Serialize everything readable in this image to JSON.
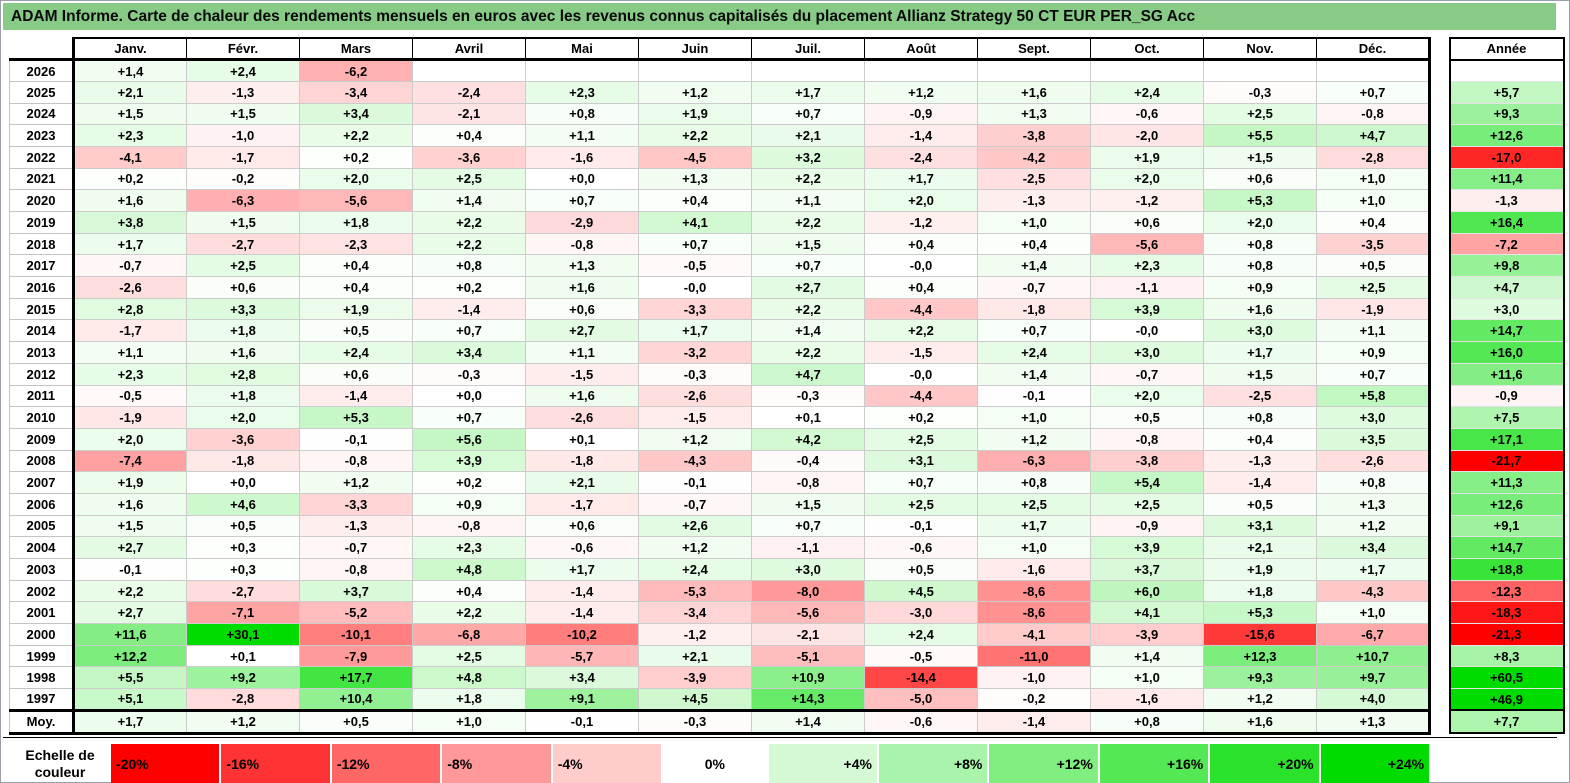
{
  "chart_data": {
    "type": "heatmap",
    "title": "ADAM Informe. Carte de chaleur des rendements mensuels en euros avec les revenus connus capitalisés du placement Allianz Strategy 50 CT EUR PER_SG Acc",
    "columns": [
      "Janv.",
      "Févr.",
      "Mars",
      "Avril",
      "Mai",
      "Juin",
      "Juil.",
      "Août",
      "Sept.",
      "Oct.",
      "Nov.",
      "Déc."
    ],
    "annual_label": "Année",
    "scale_label": "Echelle de couleur",
    "scale_stops": [
      "-20%",
      "-16%",
      "-12%",
      "-8%",
      "-4%",
      "0%",
      "+4%",
      "+8%",
      "+12%",
      "+16%",
      "+20%",
      "+24%"
    ],
    "colors": {
      "title_bg": "#87CB87",
      "negative_full": "#FF0000",
      "positive_full": "#00DC00",
      "zero": "#FFFFFF",
      "negative_limit_pct": 20,
      "positive_limit_pct": 24
    },
    "rows": [
      {
        "label": "2026",
        "cells": [
          "+1,4",
          "+2,4",
          "-6,2",
          "",
          "",
          "",
          "",
          "",
          "",
          "",
          "",
          ""
        ],
        "annual": ""
      },
      {
        "label": "2025",
        "cells": [
          "+2,1",
          "-1,3",
          "-3,4",
          "-2,4",
          "+2,3",
          "+1,2",
          "+1,7",
          "+1,2",
          "+1,6",
          "+2,4",
          "-0,3",
          "+0,7"
        ],
        "annual": "+5,7"
      },
      {
        "label": "2024",
        "cells": [
          "+1,5",
          "+1,5",
          "+3,4",
          "-2,1",
          "+0,8",
          "+1,9",
          "+0,7",
          "-0,9",
          "+1,3",
          "-0,6",
          "+2,5",
          "-0,8"
        ],
        "annual": "+9,3"
      },
      {
        "label": "2023",
        "cells": [
          "+2,3",
          "-1,0",
          "+2,2",
          "+0,4",
          "+1,1",
          "+2,2",
          "+2,1",
          "-1,4",
          "-3,8",
          "-2,0",
          "+5,5",
          "+4,7"
        ],
        "annual": "+12,6"
      },
      {
        "label": "2022",
        "cells": [
          "-4,1",
          "-1,7",
          "+0,2",
          "-3,6",
          "-1,6",
          "-4,5",
          "+3,2",
          "-2,4",
          "-4,2",
          "+1,9",
          "+1,5",
          "-2,8"
        ],
        "annual": "-17,0"
      },
      {
        "label": "2021",
        "cells": [
          "+0,2",
          "-0,2",
          "+2,0",
          "+2,5",
          "+0,0",
          "+1,3",
          "+2,2",
          "+1,7",
          "-2,5",
          "+2,0",
          "+0,6",
          "+1,0"
        ],
        "annual": "+11,4"
      },
      {
        "label": "2020",
        "cells": [
          "+1,6",
          "-6,3",
          "-5,6",
          "+1,4",
          "+0,7",
          "+0,4",
          "+1,1",
          "+2,0",
          "-1,3",
          "-1,2",
          "+5,3",
          "+1,0"
        ],
        "annual": "-1,3"
      },
      {
        "label": "2019",
        "cells": [
          "+3,8",
          "+1,5",
          "+1,8",
          "+2,2",
          "-2,9",
          "+4,1",
          "+2,2",
          "-1,2",
          "+1,0",
          "+0,6",
          "+2,0",
          "+0,4"
        ],
        "annual": "+16,4"
      },
      {
        "label": "2018",
        "cells": [
          "+1,7",
          "-2,7",
          "-2,3",
          "+2,2",
          "-0,8",
          "+0,7",
          "+1,5",
          "+0,4",
          "+0,4",
          "-5,6",
          "+0,8",
          "-3,5"
        ],
        "annual": "-7,2"
      },
      {
        "label": "2017",
        "cells": [
          "-0,7",
          "+2,5",
          "+0,4",
          "+0,8",
          "+1,3",
          "-0,5",
          "+0,7",
          "-0,0",
          "+1,4",
          "+2,3",
          "+0,8",
          "+0,5"
        ],
        "annual": "+9,8"
      },
      {
        "label": "2016",
        "cells": [
          "-2,6",
          "+0,6",
          "+0,4",
          "+0,2",
          "+1,6",
          "-0,0",
          "+2,7",
          "+0,4",
          "-0,7",
          "-1,1",
          "+0,9",
          "+2,5"
        ],
        "annual": "+4,7"
      },
      {
        "label": "2015",
        "cells": [
          "+2,8",
          "+3,3",
          "+1,9",
          "-1,4",
          "+0,6",
          "-3,3",
          "+2,2",
          "-4,4",
          "-1,8",
          "+3,9",
          "+1,6",
          "-1,9"
        ],
        "annual": "+3,0"
      },
      {
        "label": "2014",
        "cells": [
          "-1,7",
          "+1,8",
          "+0,5",
          "+0,7",
          "+2,7",
          "+1,7",
          "+1,4",
          "+2,2",
          "+0,7",
          "-0,0",
          "+3,0",
          "+1,1"
        ],
        "annual": "+14,7"
      },
      {
        "label": "2013",
        "cells": [
          "+1,1",
          "+1,6",
          "+2,4",
          "+3,4",
          "+1,1",
          "-3,2",
          "+2,2",
          "-1,5",
          "+2,4",
          "+3,0",
          "+1,7",
          "+0,9"
        ],
        "annual": "+16,0"
      },
      {
        "label": "2012",
        "cells": [
          "+2,3",
          "+2,8",
          "+0,6",
          "-0,3",
          "-1,5",
          "-0,3",
          "+4,7",
          "-0,0",
          "+1,4",
          "-0,7",
          "+1,5",
          "+0,7"
        ],
        "annual": "+11,6"
      },
      {
        "label": "2011",
        "cells": [
          "-0,5",
          "+1,8",
          "-1,4",
          "+0,0",
          "+1,6",
          "-2,6",
          "-0,3",
          "-4,4",
          "-0,1",
          "+2,0",
          "-2,5",
          "+5,8"
        ],
        "annual": "-0,9"
      },
      {
        "label": "2010",
        "cells": [
          "-1,9",
          "+2,0",
          "+5,3",
          "+0,7",
          "-2,6",
          "-1,5",
          "+0,1",
          "+0,2",
          "+1,0",
          "+0,5",
          "+0,8",
          "+3,0"
        ],
        "annual": "+7,5"
      },
      {
        "label": "2009",
        "cells": [
          "+2,0",
          "-3,6",
          "-0,1",
          "+5,6",
          "+0,1",
          "+1,2",
          "+4,2",
          "+2,5",
          "+1,2",
          "-0,8",
          "+0,4",
          "+3,5"
        ],
        "annual": "+17,1"
      },
      {
        "label": "2008",
        "cells": [
          "-7,4",
          "-1,8",
          "-0,8",
          "+3,9",
          "-1,8",
          "-4,3",
          "-0,4",
          "+3,1",
          "-6,3",
          "-3,8",
          "-1,3",
          "-2,6"
        ],
        "annual": "-21,7"
      },
      {
        "label": "2007",
        "cells": [
          "+1,9",
          "+0,0",
          "+1,2",
          "+0,2",
          "+2,1",
          "-0,1",
          "-0,8",
          "+0,7",
          "+0,8",
          "+5,4",
          "-1,4",
          "+0,8"
        ],
        "annual": "+11,3"
      },
      {
        "label": "2006",
        "cells": [
          "+1,6",
          "+4,6",
          "-3,3",
          "+0,9",
          "-1,7",
          "-0,7",
          "+1,5",
          "+2,5",
          "+2,5",
          "+2,5",
          "+0,5",
          "+1,3"
        ],
        "annual": "+12,6"
      },
      {
        "label": "2005",
        "cells": [
          "+1,5",
          "+0,5",
          "-1,3",
          "-0,8",
          "+0,6",
          "+2,6",
          "+0,7",
          "-0,1",
          "+1,7",
          "-0,9",
          "+3,1",
          "+1,2"
        ],
        "annual": "+9,1"
      },
      {
        "label": "2004",
        "cells": [
          "+2,7",
          "+0,3",
          "-0,7",
          "+2,3",
          "-0,6",
          "+1,2",
          "-1,1",
          "-0,6",
          "+1,0",
          "+3,9",
          "+2,1",
          "+3,4"
        ],
        "annual": "+14,7"
      },
      {
        "label": "2003",
        "cells": [
          "-0,1",
          "+0,3",
          "-0,8",
          "+4,8",
          "+1,7",
          "+2,4",
          "+3,0",
          "+0,5",
          "-1,6",
          "+3,7",
          "+1,9",
          "+1,7"
        ],
        "annual": "+18,8"
      },
      {
        "label": "2002",
        "cells": [
          "+2,2",
          "-2,7",
          "+3,7",
          "+0,4",
          "-1,4",
          "-5,3",
          "-8,0",
          "+4,5",
          "-8,6",
          "+6,0",
          "+1,8",
          "-4,3"
        ],
        "annual": "-12,3"
      },
      {
        "label": "2001",
        "cells": [
          "+2,7",
          "-7,1",
          "-5,2",
          "+2,2",
          "-1,4",
          "-3,4",
          "-5,6",
          "-3,0",
          "-8,6",
          "+4,1",
          "+5,3",
          "+1,0"
        ],
        "annual": "-18,3"
      },
      {
        "label": "2000",
        "cells": [
          "+11,6",
          "+30,1",
          "-10,1",
          "-6,8",
          "-10,2",
          "-1,2",
          "-2,1",
          "+2,4",
          "-4,1",
          "-3,9",
          "-15,6",
          "-6,7"
        ],
        "annual": "-21,3"
      },
      {
        "label": "1999",
        "cells": [
          "+12,2",
          "+0,1",
          "-7,9",
          "+2,5",
          "-5,7",
          "+2,1",
          "-5,1",
          "-0,5",
          "-11,0",
          "+1,4",
          "+12,3",
          "+10,7"
        ],
        "annual": "+8,3"
      },
      {
        "label": "1998",
        "cells": [
          "+5,5",
          "+9,2",
          "+17,7",
          "+4,8",
          "+3,4",
          "-3,9",
          "+10,9",
          "-14,4",
          "-1,0",
          "+1,0",
          "+9,3",
          "+9,7"
        ],
        "annual": "+60,5"
      },
      {
        "label": "1997",
        "cells": [
          "+5,1",
          "-2,8",
          "+10,4",
          "+1,8",
          "+9,1",
          "+4,5",
          "+14,3",
          "-5,0",
          "-0,2",
          "-1,6",
          "+1,2",
          "+4,0"
        ],
        "annual": "+46,9"
      },
      {
        "label": "Moy.",
        "cells": [
          "+1,7",
          "+1,2",
          "+0,5",
          "+1,0",
          "-0,1",
          "-0,3",
          "+1,4",
          "-0,6",
          "-1,4",
          "+0,8",
          "+1,6",
          "+1,3"
        ],
        "annual": "+7,7"
      }
    ]
  }
}
